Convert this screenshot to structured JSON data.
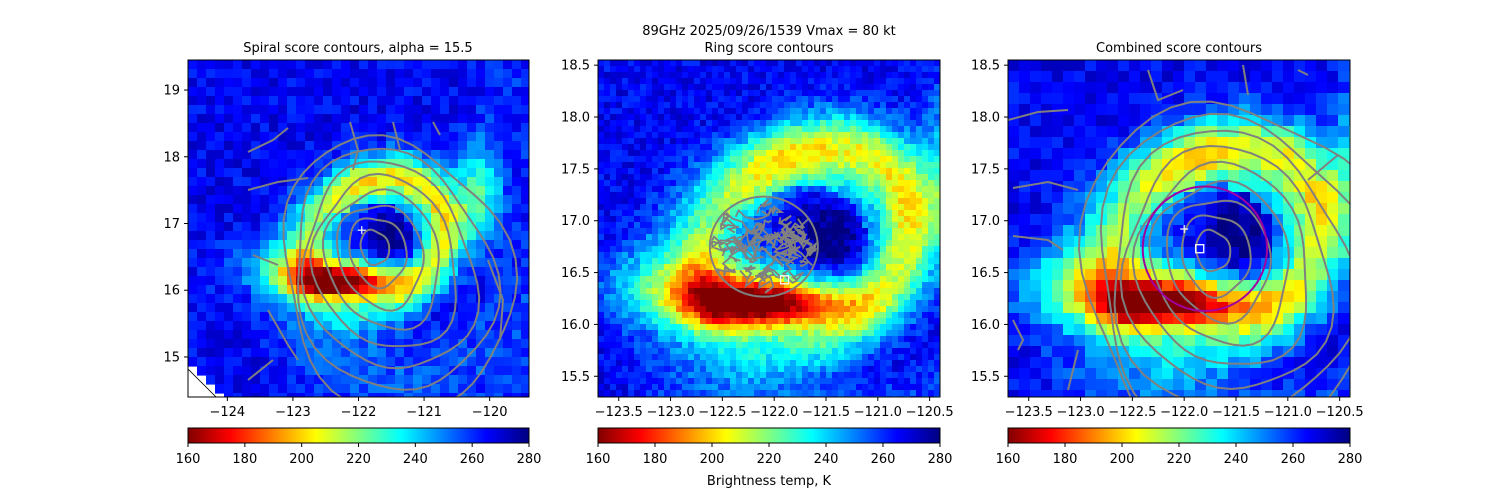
{
  "figure": {
    "suptitle": "89GHz  2025/09/26/1539    Vmax = 80 kt",
    "colorbar_label": "Brightness temp, K"
  },
  "colormap": {
    "name": "jet_r",
    "range": [
      160,
      280
    ],
    "stops": [
      "#800000",
      "#ff0000",
      "#ff8000",
      "#ffff00",
      "#80ff80",
      "#00ffff",
      "#0080ff",
      "#0000ff",
      "#000080"
    ]
  },
  "colors": {
    "contour": "#808080",
    "center_marker": "#ffffff",
    "ring_circle": "#a000a0"
  },
  "chart_data": [
    {
      "type": "heatmap",
      "title": "Spiral score contours, alpha = 15.5",
      "xlim": [
        -124.6,
        -119.4
      ],
      "ylim": [
        14.4,
        19.45
      ],
      "x_ticks": [
        -124,
        -123,
        -122,
        -121,
        -120
      ],
      "x_tick_labels": [
        "−124",
        "−123",
        "−122",
        "−121",
        "−120"
      ],
      "y_ticks": [
        15,
        16,
        17,
        18,
        19
      ],
      "y_tick_labels": [
        "15",
        "16",
        "17",
        "18",
        "19"
      ],
      "colorbar_ticks": [
        "160",
        "180",
        "200",
        "220",
        "240",
        "260",
        "280"
      ],
      "center_plus": [
        -121.95,
        16.9
      ],
      "contour_center": [
        -121.8,
        16.7
      ],
      "no_data_corner": "lower-left",
      "grid": false
    },
    {
      "type": "heatmap",
      "title": "Ring score contours",
      "xlim": [
        -123.7,
        -120.4
      ],
      "ylim": [
        15.3,
        18.55
      ],
      "x_ticks": [
        -123.5,
        -123.0,
        -122.5,
        -122.0,
        -121.5,
        -121.0,
        -120.5
      ],
      "x_tick_labels": [
        "−123.5",
        "−123.0",
        "−122.5",
        "−122.0",
        "−121.5",
        "−121.0",
        "−120.5"
      ],
      "y_ticks": [
        15.5,
        16.0,
        16.5,
        17.0,
        17.5,
        18.0,
        18.5
      ],
      "y_tick_labels": [
        "15.5",
        "16.0",
        "16.5",
        "17.0",
        "17.5",
        "18.0",
        "18.5"
      ],
      "colorbar_ticks": [
        "160",
        "180",
        "200",
        "220",
        "240",
        "260",
        "280"
      ],
      "center_square": [
        -121.9,
        16.43
      ],
      "contour_region_center": [
        -122.1,
        16.75
      ],
      "grid": false
    },
    {
      "type": "heatmap",
      "title": "Combined score contours",
      "xlim": [
        -123.7,
        -120.4
      ],
      "ylim": [
        15.3,
        18.55
      ],
      "x_ticks": [
        -123.5,
        -123.0,
        -122.5,
        -122.0,
        -121.5,
        -121.0,
        -120.5
      ],
      "x_tick_labels": [
        "−123.5",
        "−123.0",
        "−122.5",
        "−122.0",
        "−121.5",
        "−121.0",
        "−120.5"
      ],
      "y_ticks": [
        15.5,
        16.0,
        16.5,
        17.0,
        17.5,
        18.0,
        18.5
      ],
      "y_tick_labels": [
        "15.5",
        "16.0",
        "16.5",
        "17.0",
        "17.5",
        "18.0",
        "18.5"
      ],
      "colorbar_ticks": [
        "160",
        "180",
        "200",
        "220",
        "240",
        "260",
        "280"
      ],
      "center_plus": [
        -122.0,
        16.92
      ],
      "center_square": [
        -121.85,
        16.73
      ],
      "ring_center": [
        -121.8,
        16.73
      ],
      "ring_radius_deg": 0.6,
      "grid": false
    }
  ]
}
